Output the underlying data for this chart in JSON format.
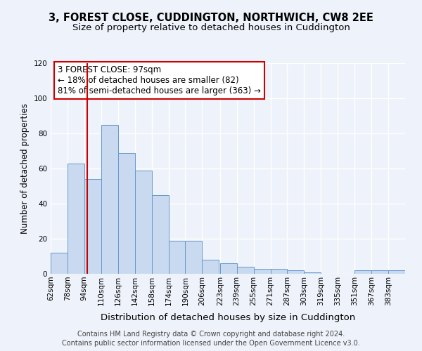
{
  "title": "3, FOREST CLOSE, CUDDINGTON, NORTHWICH, CW8 2EE",
  "subtitle": "Size of property relative to detached houses in Cuddington",
  "xlabel": "Distribution of detached houses by size in Cuddington",
  "ylabel": "Number of detached properties",
  "bin_labels": [
    "62sqm",
    "78sqm",
    "94sqm",
    "110sqm",
    "126sqm",
    "142sqm",
    "158sqm",
    "174sqm",
    "190sqm",
    "206sqm",
    "223sqm",
    "239sqm",
    "255sqm",
    "271sqm",
    "287sqm",
    "303sqm",
    "319sqm",
    "335sqm",
    "351sqm",
    "367sqm",
    "383sqm"
  ],
  "bin_edges": [
    62,
    78,
    94,
    110,
    126,
    142,
    158,
    174,
    190,
    206,
    223,
    239,
    255,
    271,
    287,
    303,
    319,
    335,
    351,
    367,
    383
  ],
  "bar_heights": [
    12,
    63,
    54,
    85,
    69,
    59,
    45,
    19,
    19,
    8,
    6,
    4,
    3,
    3,
    2,
    1,
    0,
    0,
    2,
    2,
    2
  ],
  "bar_color": "#c8d9f0",
  "bar_edge_color": "#6699cc",
  "ylim": [
    0,
    120
  ],
  "yticks": [
    0,
    20,
    40,
    60,
    80,
    100,
    120
  ],
  "property_value": 97,
  "vline_color": "#cc0000",
  "annotation_title": "3 FOREST CLOSE: 97sqm",
  "annotation_line1": "← 18% of detached houses are smaller (82)",
  "annotation_line2": "81% of semi-detached houses are larger (363) →",
  "annotation_box_facecolor": "#ffffff",
  "annotation_box_edge_color": "#cc0000",
  "footnote1": "Contains HM Land Registry data © Crown copyright and database right 2024.",
  "footnote2": "Contains public sector information licensed under the Open Government Licence v3.0.",
  "background_color": "#eef2fa",
  "grid_color": "#ffffff",
  "title_fontsize": 10.5,
  "subtitle_fontsize": 9.5,
  "xlabel_fontsize": 9.5,
  "ylabel_fontsize": 8.5,
  "tick_fontsize": 7.5,
  "annotation_fontsize": 8.5,
  "footnote_fontsize": 7.0
}
